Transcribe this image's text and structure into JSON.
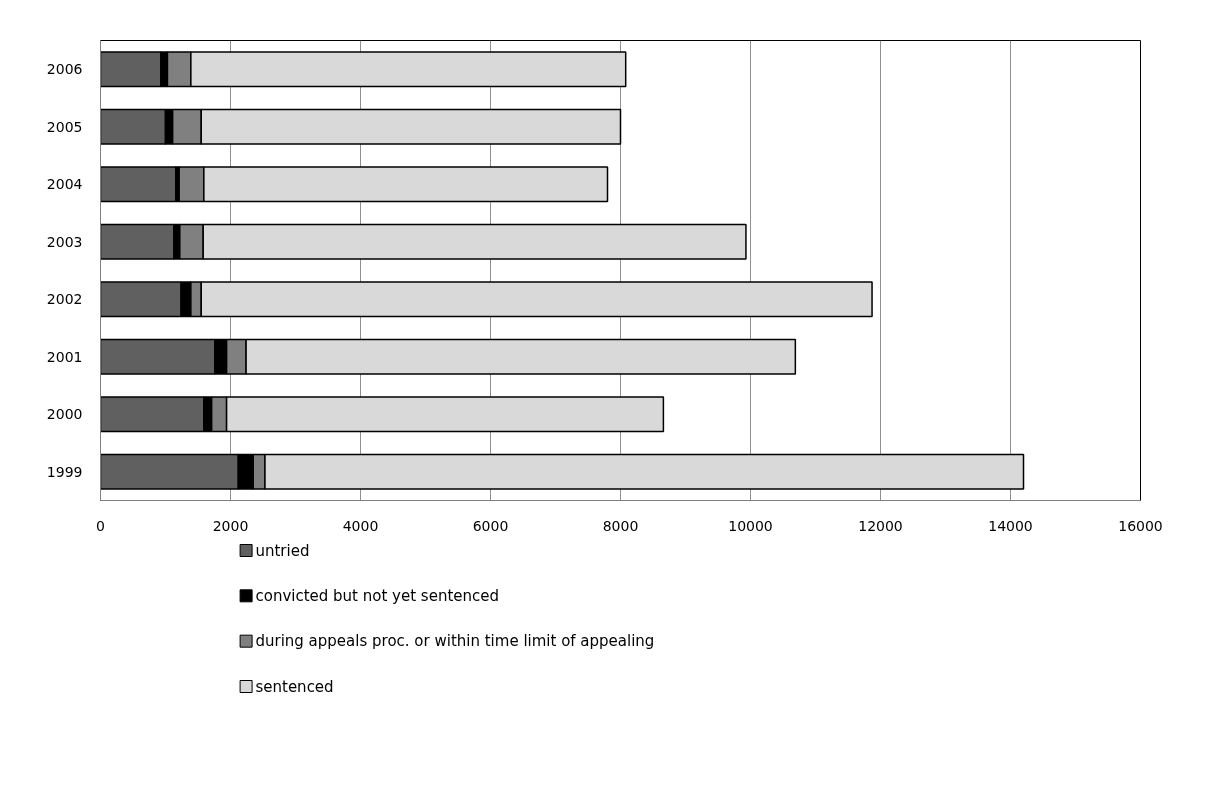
{
  "chart_data": {
    "type": "bar",
    "orientation": "horizontal",
    "stacked": true,
    "categories": [
      "2006",
      "2005",
      "2004",
      "2003",
      "2002",
      "2001",
      "2000",
      "1999"
    ],
    "series": [
      {
        "name": "untried",
        "color": "#606060",
        "values": [
          930,
          1000,
          1160,
          1130,
          1240,
          1760,
          1590,
          2120
        ]
      },
      {
        "name": "convicted but not yet sentenced",
        "color": "#000000",
        "values": [
          100,
          110,
          50,
          90,
          150,
          180,
          120,
          230
        ]
      },
      {
        "name": "during appeals proc. or within time limit of appealing",
        "color": "#808080",
        "values": [
          360,
          440,
          380,
          360,
          160,
          300,
          230,
          180
        ]
      },
      {
        "name": "sentenced",
        "color": "#d9d9d9",
        "values": [
          6690,
          6450,
          6210,
          8350,
          10320,
          8450,
          6720,
          11670
        ]
      }
    ],
    "xlim": [
      0,
      16000
    ],
    "xticks": [
      0,
      2000,
      4000,
      6000,
      8000,
      10000,
      12000,
      14000,
      16000
    ],
    "grid": "x",
    "legend": "bottom"
  }
}
